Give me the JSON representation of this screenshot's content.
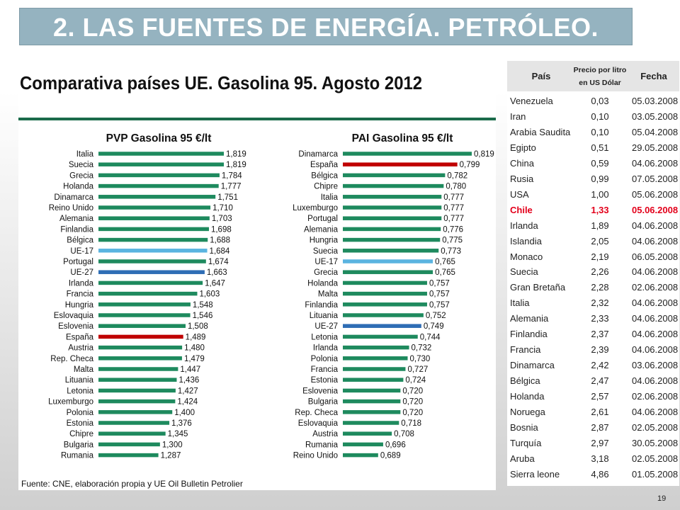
{
  "slide": {
    "title": "2. LAS FUENTES DE ENERGÍA. PETRÓLEO.",
    "page_number": "19"
  },
  "chart_panel": {
    "title": "Comparativa países UE. Gasolina 95. Agosto 2012",
    "source": "Fuente: CNE, elaboración propia y UE Oil Bulletin Petrolier"
  },
  "colors": {
    "bar_default": "#1e8a5e",
    "bar_highlight_spain": "#c00000",
    "bar_eu17": "#5ab4e0",
    "bar_eu27": "#2e6db5",
    "rule": "#1b6b4a",
    "table_highlight": "#e3001b"
  },
  "chart_data": [
    {
      "type": "bar",
      "orientation": "horizontal",
      "title": "PVP Gasolina 95 €/lt",
      "categories": [
        "Italia",
        "Suecia",
        "Grecia",
        "Holanda",
        "Dinamarca",
        "Reino Unido",
        "Alemania",
        "Finlandia",
        "Bélgica",
        "UE-17",
        "Portugal",
        "UE-27",
        "Irlanda",
        "Francia",
        "Hungria",
        "Eslovaquia",
        "Eslovenia",
        "España",
        "Austria",
        "Rep. Checa",
        "Malta",
        "Lituania",
        "Letonia",
        "Luxemburgo",
        "Polonia",
        "Estonia",
        "Chipre",
        "Bulgaria",
        "Rumania"
      ],
      "values": [
        1.819,
        1.819,
        1.784,
        1.777,
        1.751,
        1.71,
        1.703,
        1.698,
        1.688,
        1.684,
        1.674,
        1.663,
        1.647,
        1.603,
        1.548,
        1.546,
        1.508,
        1.489,
        1.48,
        1.479,
        1.447,
        1.436,
        1.427,
        1.424,
        1.4,
        1.376,
        1.345,
        1.3,
        1.287
      ],
      "value_labels": [
        "1,819",
        "1,819",
        "1,784",
        "1,777",
        "1,751",
        "1,710",
        "1,703",
        "1,698",
        "1,688",
        "1,684",
        "1,674",
        "1,663",
        "1,647",
        "1,603",
        "1,548",
        "1,546",
        "1,508",
        "1,489",
        "1,480",
        "1,479",
        "1,447",
        "1,436",
        "1,427",
        "1,424",
        "1,400",
        "1,376",
        "1,345",
        "1,300",
        "1,287"
      ],
      "highlights": {
        "España": "bar_highlight_spain",
        "UE-17": "bar_eu17",
        "UE-27": "bar_eu27"
      },
      "xlim": [
        0.8,
        1.819
      ]
    },
    {
      "type": "bar",
      "orientation": "horizontal",
      "title": "PAI Gasolina 95 €/lt",
      "categories": [
        "Dinamarca",
        "España",
        "Bélgica",
        "Chipre",
        "Italia",
        "Luxemburgo",
        "Portugal",
        "Alemania",
        "Hungria",
        "Suecia",
        "UE-17",
        "Grecia",
        "Holanda",
        "Malta",
        "Finlandia",
        "Lituania",
        "UE-27",
        "Letonia",
        "Irlanda",
        "Polonia",
        "Francia",
        "Estonia",
        "Eslovenia",
        "Bulgaria",
        "Rep. Checa",
        "Eslovaquia",
        "Austria",
        "Rumania",
        "Reino Unido"
      ],
      "values": [
        0.819,
        0.799,
        0.782,
        0.78,
        0.777,
        0.777,
        0.777,
        0.776,
        0.775,
        0.773,
        0.765,
        0.765,
        0.757,
        0.757,
        0.757,
        0.752,
        0.749,
        0.744,
        0.732,
        0.73,
        0.727,
        0.724,
        0.72,
        0.72,
        0.72,
        0.718,
        0.708,
        0.696,
        0.689
      ],
      "value_labels": [
        "0,819",
        "0,799",
        "0,782",
        "0,780",
        "0,777",
        "0,777",
        "0,777",
        "0,776",
        "0,775",
        "0,773",
        "0,765",
        "0,765",
        "0,757",
        "0,757",
        "0,757",
        "0,752",
        "0,749",
        "0,744",
        "0,732",
        "0,730",
        "0,727",
        "0,724",
        "0,720",
        "0,720",
        "0,720",
        "0,718",
        "0,708",
        "0,696",
        "0,689"
      ],
      "highlights": {
        "España": "bar_highlight_spain",
        "UE-17": "bar_eu17",
        "UE-27": "bar_eu27"
      },
      "xlim": [
        0.64,
        0.819
      ]
    }
  ],
  "table": {
    "headers": {
      "country": "País",
      "price_line1": "Precio por litro",
      "price_line2": "en US Dólar",
      "date": "Fecha"
    },
    "highlight_country": "Chile",
    "rows": [
      {
        "country": "Venezuela",
        "price": "0,03",
        "date": "05.03.2008"
      },
      {
        "country": "Iran",
        "price": "0,10",
        "date": "03.05.2008"
      },
      {
        "country": "Arabia Saudita",
        "price": "0,10",
        "date": "05.04.2008"
      },
      {
        "country": "Egipto",
        "price": "0,51",
        "date": "29.05.2008"
      },
      {
        "country": "China",
        "price": "0,59",
        "date": "04.06.2008"
      },
      {
        "country": "Rusia",
        "price": "0,99",
        "date": "07.05.2008"
      },
      {
        "country": "USA",
        "price": "1,00",
        "date": "05.06.2008"
      },
      {
        "country": "Chile",
        "price": "1,33",
        "date": "05.06.2008"
      },
      {
        "country": "Irlanda",
        "price": "1,89",
        "date": "04.06.2008"
      },
      {
        "country": "Islandia",
        "price": "2,05",
        "date": "04.06.2008"
      },
      {
        "country": "Monaco",
        "price": "2,19",
        "date": "06.05.2008"
      },
      {
        "country": "Suecia",
        "price": "2,26",
        "date": "04.06.2008"
      },
      {
        "country": "Gran Bretaña",
        "price": "2,28",
        "date": "02.06.2008"
      },
      {
        "country": "Italia",
        "price": "2,32",
        "date": "04.06.2008"
      },
      {
        "country": "Alemania",
        "price": "2,33",
        "date": "04.06.2008"
      },
      {
        "country": "Finlandia",
        "price": "2,37",
        "date": "04.06.2008"
      },
      {
        "country": "Francia",
        "price": "2,39",
        "date": "04.06.2008"
      },
      {
        "country": "Dinamarca",
        "price": "2,42",
        "date": "03.06.2008"
      },
      {
        "country": "Bélgica",
        "price": "2,47",
        "date": "04.06.2008"
      },
      {
        "country": "Holanda",
        "price": "2,57",
        "date": "02.06.2008"
      },
      {
        "country": "Noruega",
        "price": "2,61",
        "date": "04.06.2008"
      },
      {
        "country": "Bosnia",
        "price": "2,87",
        "date": "02.05.2008"
      },
      {
        "country": "Turquía",
        "price": "2,97",
        "date": "30.05.2008"
      },
      {
        "country": "Aruba",
        "price": "3,18",
        "date": "02.05.2008"
      },
      {
        "country": "Sierra leone",
        "price": "4,86",
        "date": "01.05.2008"
      }
    ]
  }
}
